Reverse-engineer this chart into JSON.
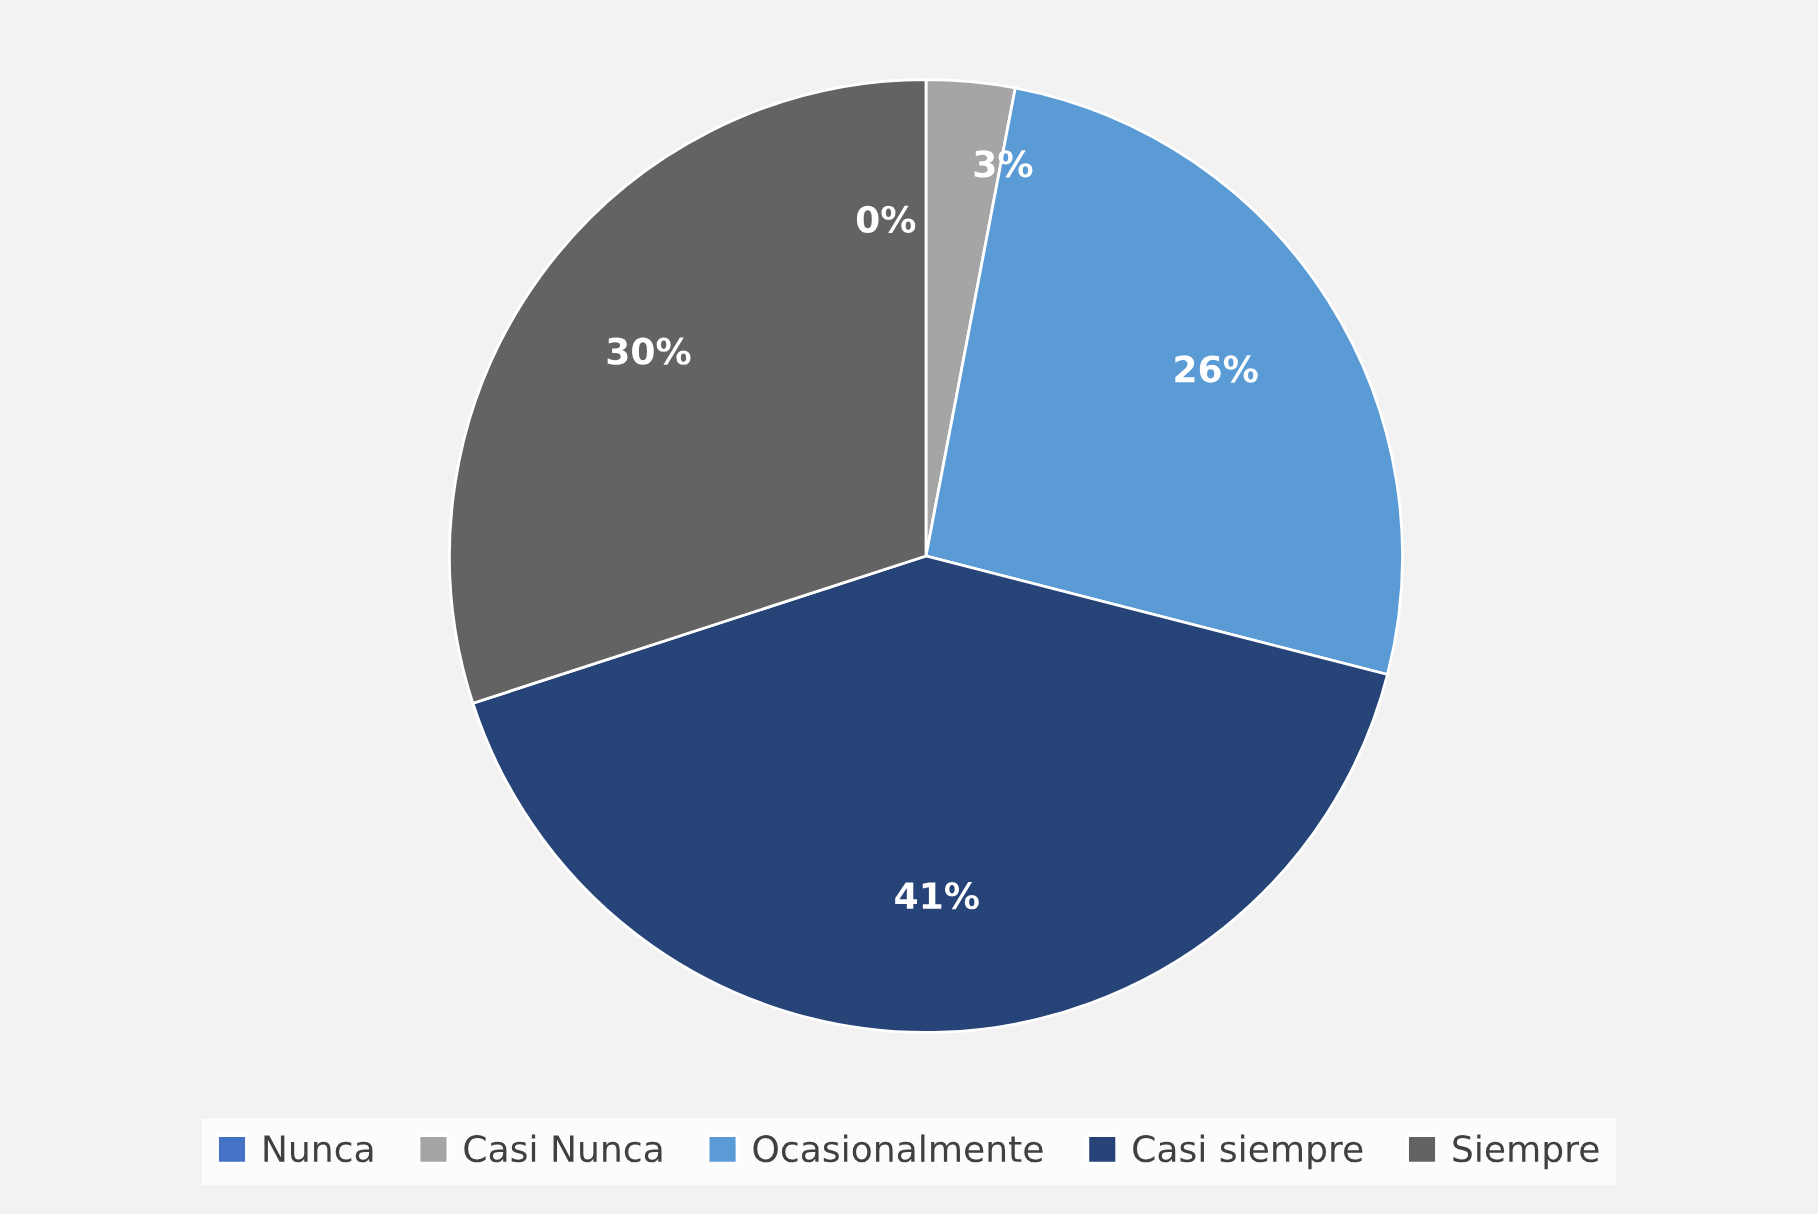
{
  "chart_data": {
    "type": "pie",
    "categories": [
      "Nunca",
      "Casi Nunca",
      "Ocasionalmente",
      "Casi siempre",
      "Siempre"
    ],
    "values": [
      0,
      3,
      26,
      41,
      30
    ],
    "colors": [
      "#4472c4",
      "#a5a5a5",
      "#5b9bd5",
      "#264478",
      "#636363"
    ],
    "value_labels": [
      "0%",
      "3%",
      "26%",
      "41%",
      "30%"
    ],
    "legend": "bottom"
  }
}
